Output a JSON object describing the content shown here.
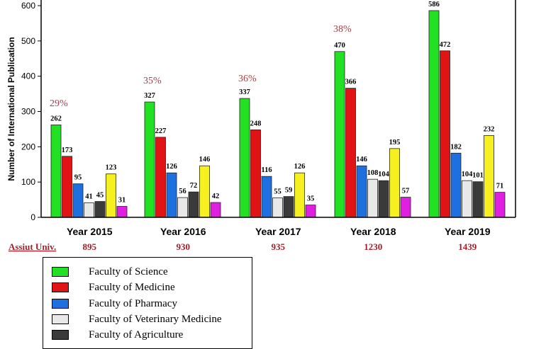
{
  "chart_data": {
    "type": "bar",
    "ylabel": "Number of International Publication",
    "ylim": [
      0,
      600
    ],
    "yticks": [
      0,
      100,
      200,
      300,
      400,
      500,
      600
    ],
    "categories": [
      "Year 2015",
      "Year 2016",
      "Year 2017",
      "Year 2018",
      "Year 2019"
    ],
    "series": [
      {
        "name": "Faculty of Science",
        "color": "#22e022",
        "values": [
          262,
          327,
          337,
          470,
          586
        ]
      },
      {
        "name": "Faculty of Medicine",
        "color": "#e01414",
        "values": [
          173,
          227,
          248,
          366,
          472
        ]
      },
      {
        "name": "Faculty of Pharmacy",
        "color": "#1e6fe0",
        "values": [
          95,
          126,
          116,
          146,
          182
        ]
      },
      {
        "name": "Faculty of Veterinary Medicine",
        "color": "#e8e8e8",
        "values": [
          41,
          56,
          55,
          108,
          104
        ]
      },
      {
        "name": "Faculty of Agriculture",
        "color": "#3a3a3a",
        "values": [
          45,
          72,
          59,
          104,
          101
        ]
      },
      {
        "name": "",
        "color": "#f7f021",
        "values": [
          123,
          146,
          126,
          195,
          232
        ]
      },
      {
        "name": "",
        "color": "#e020e0",
        "values": [
          31,
          42,
          35,
          57,
          71
        ]
      }
    ],
    "annotations": {
      "percentages": [
        "29%",
        "35%",
        "36%",
        "38%",
        ""
      ],
      "univ_label": "Assiut Univ.",
      "univ_totals": [
        "895",
        "930",
        "935",
        "1230",
        "1439"
      ]
    },
    "legend_placement": "bottom-left"
  }
}
